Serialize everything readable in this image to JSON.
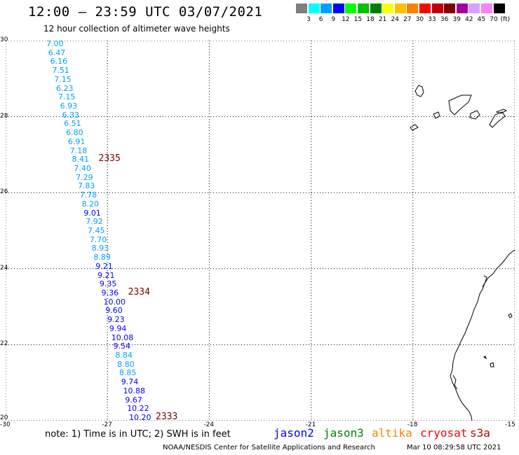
{
  "title": "12:00 – 23:59 UTC 03/07/2021",
  "subtitle": "12 hour collection of altimeter wave heights",
  "legend": {
    "labels": [
      "3",
      "6",
      "9",
      "12",
      "15",
      "18",
      "21",
      "24",
      "27",
      "30",
      "33",
      "36",
      "39",
      "42",
      "45",
      "70"
    ],
    "colors": [
      "#7f7f7f",
      "#00ffff",
      "#00a0ff",
      "#0000ff",
      "#00ff00",
      "#00c000",
      "#008000",
      "#ffff00",
      "#ffc000",
      "#ff8000",
      "#ff0000",
      "#c00000",
      "#800000",
      "#a000a0",
      "#d8a0ff",
      "#ff80ff",
      "#000000"
    ],
    "unit": "(ft)"
  },
  "axes": {
    "lat_labels": [
      "30",
      "28",
      "26",
      "24",
      "22",
      "20"
    ],
    "lat_values": [
      30,
      28,
      26,
      24,
      22,
      20
    ],
    "lon_labels": [
      "-30",
      "-27",
      "-24",
      "-21",
      "-18",
      "-15"
    ],
    "lon_values": [
      -30,
      -27,
      -24,
      -21,
      -18,
      -15
    ]
  },
  "track_points": [
    {
      "v": "7.00",
      "c": "#00a0ff"
    },
    {
      "v": "6.47",
      "c": "#00a0ff"
    },
    {
      "v": "6.16",
      "c": "#00a0ff"
    },
    {
      "v": "7.51",
      "c": "#00a0ff"
    },
    {
      "v": "7.15",
      "c": "#00a0ff"
    },
    {
      "v": "6.23",
      "c": "#00a0ff"
    },
    {
      "v": "7.15",
      "c": "#00a0ff"
    },
    {
      "v": "6.93",
      "c": "#00a0ff"
    },
    {
      "v": "6.33",
      "c": "#00a0ff"
    },
    {
      "v": "6.51",
      "c": "#00a0ff"
    },
    {
      "v": "6.80",
      "c": "#00a0ff"
    },
    {
      "v": "6.91",
      "c": "#00a0ff"
    },
    {
      "v": "7.18",
      "c": "#00a0ff"
    },
    {
      "v": "8.41",
      "c": "#00a0ff"
    },
    {
      "v": "7.40",
      "c": "#00a0ff"
    },
    {
      "v": "7.29",
      "c": "#00a0ff"
    },
    {
      "v": "7.83",
      "c": "#00a0ff"
    },
    {
      "v": "7.78",
      "c": "#00a0ff"
    },
    {
      "v": "8.20",
      "c": "#00a0ff"
    },
    {
      "v": "9.01",
      "c": "#0000ff"
    },
    {
      "v": "7.92",
      "c": "#00a0ff"
    },
    {
      "v": "7.45",
      "c": "#00a0ff"
    },
    {
      "v": "7.70",
      "c": "#00a0ff"
    },
    {
      "v": "8.93",
      "c": "#00a0ff"
    },
    {
      "v": "8.89",
      "c": "#00a0ff"
    },
    {
      "v": "9.21",
      "c": "#0000ff"
    },
    {
      "v": "9.21",
      "c": "#0000ff"
    },
    {
      "v": "9.35",
      "c": "#0000ff"
    },
    {
      "v": "9.36",
      "c": "#0000ff"
    },
    {
      "v": "10.00",
      "c": "#0000ff"
    },
    {
      "v": "9.60",
      "c": "#0000ff"
    },
    {
      "v": "9.23",
      "c": "#0000ff"
    },
    {
      "v": "9.94",
      "c": "#0000ff"
    },
    {
      "v": "10.08",
      "c": "#0000ff"
    },
    {
      "v": "9.54",
      "c": "#0000ff"
    },
    {
      "v": "8.84",
      "c": "#00a0ff"
    },
    {
      "v": "8.80",
      "c": "#00a0ff"
    },
    {
      "v": "8.85",
      "c": "#00a0ff"
    },
    {
      "v": "9.74",
      "c": "#0000ff"
    },
    {
      "v": "10.88",
      "c": "#0000ff"
    },
    {
      "v": "9.67",
      "c": "#0000ff"
    },
    {
      "v": "10.22",
      "c": "#0000ff"
    },
    {
      "v": "10.20",
      "c": "#0000ff"
    }
  ],
  "pass_times": [
    {
      "label": "2335",
      "after_index": 13
    },
    {
      "label": "2334",
      "after_index": 28
    },
    {
      "label": "2333",
      "after_index": 42
    }
  ],
  "note": "note: 1) Time is in UTC; 2) SWH is in feet",
  "satellites": [
    {
      "name": "jason2",
      "color": "#0000ff"
    },
    {
      "name": "jason3",
      "color": "#008000"
    },
    {
      "name": "altika",
      "color": "#ff8000"
    },
    {
      "name": "cryosat",
      "color": "#ff0000"
    },
    {
      "name": "s3a",
      "color": "#c00000"
    }
  ],
  "credit": "NOAA/NESDIS Center for Satellite Applications and Research",
  "timestamp": "Mar 10 08:29:58 UTC 2021",
  "colors": {
    "gridline": "#000000",
    "coast": "#000000"
  }
}
